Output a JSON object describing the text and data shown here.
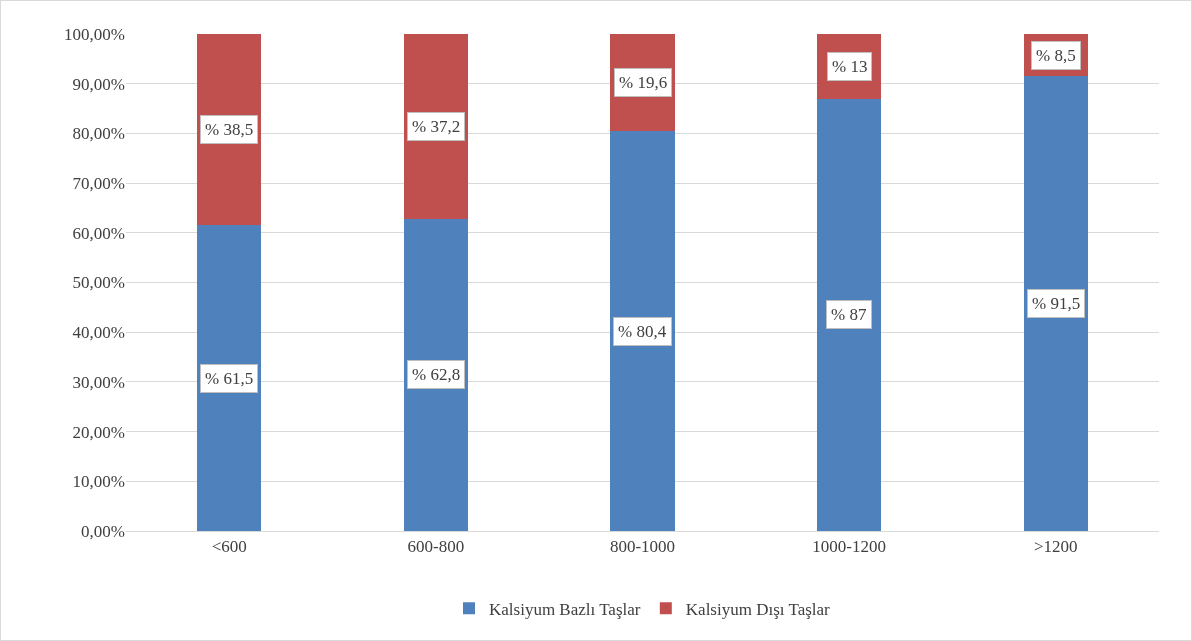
{
  "chart_data": {
    "type": "bar",
    "stacked": true,
    "categories": [
      "<600",
      "600-800",
      "800-1000",
      "1000-1200",
      ">1200"
    ],
    "series": [
      {
        "name": "Kalsiyum Bazlı Taşlar",
        "color": "#4f81bd",
        "values": [
          61.5,
          62.8,
          80.4,
          87,
          91.5
        ],
        "value_labels": [
          "% 61,5",
          "% 62,8",
          "% 80,4",
          "% 87",
          "% 91,5"
        ]
      },
      {
        "name": "Kalsiyum Dışı Taşlar",
        "color": "#c0504d",
        "values": [
          38.5,
          37.2,
          19.6,
          13,
          8.5
        ],
        "value_labels": [
          "% 38,5",
          "% 37,2",
          "% 19,6",
          "% 13",
          "% 8,5"
        ]
      }
    ],
    "ylim": [
      0,
      100
    ],
    "yticks": [
      {
        "value": 0,
        "label": "0,00%"
      },
      {
        "value": 10,
        "label": "10,00%"
      },
      {
        "value": 20,
        "label": "20,00%"
      },
      {
        "value": 30,
        "label": "30,00%"
      },
      {
        "value": 40,
        "label": "40,00%"
      },
      {
        "value": 50,
        "label": "50,00%"
      },
      {
        "value": 60,
        "label": "60,00%"
      },
      {
        "value": 70,
        "label": "70,00%"
      },
      {
        "value": 80,
        "label": "80,00%"
      },
      {
        "value": 90,
        "label": "90,00%"
      },
      {
        "value": 100,
        "label": "100,00%"
      }
    ],
    "grid": "y",
    "legend": "bottom"
  }
}
